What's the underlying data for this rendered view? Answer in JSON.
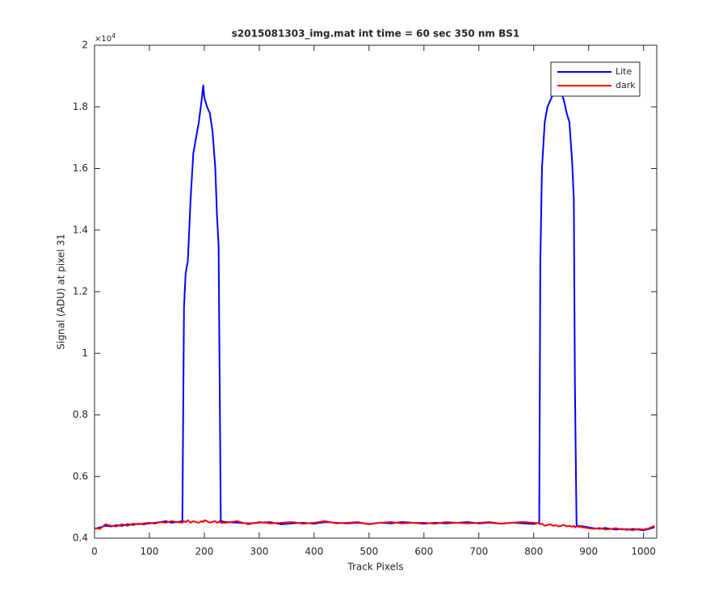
{
  "chart_data": {
    "type": "line",
    "title": "s2015081303_img.mat int time = 60 sec  350 nm BS1",
    "x_label": "Track Pixels",
    "y_label": "Signal (ADU) at pixel 31",
    "y_scale_base": "×10",
    "y_scale_exponent": "4",
    "x": [
      0,
      10,
      20,
      30,
      40,
      50,
      60,
      70,
      80,
      90,
      100,
      110,
      120,
      130,
      140,
      150,
      160,
      163,
      166,
      170,
      175,
      180,
      185,
      190,
      195,
      198,
      200,
      205,
      210,
      215,
      220,
      223,
      226,
      228,
      230,
      240,
      260,
      280,
      300,
      320,
      340,
      360,
      380,
      400,
      420,
      440,
      460,
      480,
      500,
      520,
      540,
      560,
      580,
      600,
      620,
      640,
      660,
      680,
      700,
      720,
      740,
      760,
      780,
      800,
      810,
      812,
      815,
      820,
      825,
      830,
      835,
      840,
      845,
      850,
      855,
      860,
      865,
      870,
      873,
      875,
      878,
      890,
      900,
      910,
      920,
      930,
      940,
      950,
      960,
      970,
      980,
      990,
      1000,
      1010,
      1020
    ],
    "series": [
      {
        "name": "Lite",
        "color": "#0000ff",
        "values": [
          0.43,
          0.435,
          0.44,
          0.438,
          0.442,
          0.44,
          0.445,
          0.443,
          0.447,
          0.445,
          0.448,
          0.45,
          0.452,
          0.455,
          0.45,
          0.452,
          0.455,
          1.15,
          1.26,
          1.3,
          1.5,
          1.65,
          1.7,
          1.75,
          1.82,
          1.87,
          1.83,
          1.8,
          1.78,
          1.72,
          1.6,
          1.45,
          1.35,
          0.9,
          0.455,
          0.452,
          0.45,
          0.448,
          0.45,
          0.452,
          0.445,
          0.448,
          0.45,
          0.447,
          0.452,
          0.45,
          0.448,
          0.45,
          0.446,
          0.45,
          0.448,
          0.452,
          0.45,
          0.447,
          0.45,
          0.448,
          0.45,
          0.452,
          0.448,
          0.45,
          0.447,
          0.45,
          0.448,
          0.446,
          0.45,
          1.3,
          1.6,
          1.75,
          1.8,
          1.82,
          1.84,
          1.85,
          1.84,
          1.85,
          1.82,
          1.78,
          1.75,
          1.62,
          1.5,
          0.9,
          0.44,
          0.438,
          0.435,
          0.432,
          0.43,
          0.433,
          0.43,
          0.428,
          0.43,
          0.427,
          0.43,
          0.428,
          0.425,
          0.43,
          0.435
        ]
      },
      {
        "name": "dark",
        "color": "#ff0000",
        "values": [
          0.432,
          0.43,
          0.445,
          0.44,
          0.438,
          0.445,
          0.44,
          0.447,
          0.445,
          0.448,
          0.45,
          0.447,
          0.452,
          0.45,
          0.455,
          0.452,
          0.45,
          0.455,
          0.452,
          0.458,
          0.45,
          0.455,
          0.452,
          0.45,
          0.455,
          0.452,
          0.458,
          0.455,
          0.45,
          0.453,
          0.455,
          0.45,
          0.452,
          0.455,
          0.45,
          0.45,
          0.455,
          0.445,
          0.452,
          0.448,
          0.45,
          0.452,
          0.447,
          0.45,
          0.455,
          0.448,
          0.45,
          0.452,
          0.445,
          0.45,
          0.452,
          0.448,
          0.45,
          0.45,
          0.447,
          0.452,
          0.45,
          0.448,
          0.45,
          0.452,
          0.447,
          0.45,
          0.452,
          0.45,
          0.448,
          0.445,
          0.447,
          0.44,
          0.443,
          0.445,
          0.44,
          0.442,
          0.438,
          0.44,
          0.443,
          0.438,
          0.44,
          0.437,
          0.44,
          0.435,
          0.438,
          0.435,
          0.432,
          0.43,
          0.433,
          0.428,
          0.43,
          0.432,
          0.428,
          0.43,
          0.425,
          0.43,
          0.428,
          0.432,
          0.44
        ]
      }
    ],
    "xlim": [
      0,
      1024
    ],
    "ylim": [
      0.4,
      2
    ],
    "xticks": [
      0,
      100,
      200,
      300,
      400,
      500,
      600,
      700,
      800,
      900,
      1000
    ],
    "yticks": [
      0.4,
      0.6,
      0.8,
      1,
      1.2,
      1.4,
      1.6,
      1.8,
      2
    ],
    "legend": "northeast",
    "grid": false
  }
}
